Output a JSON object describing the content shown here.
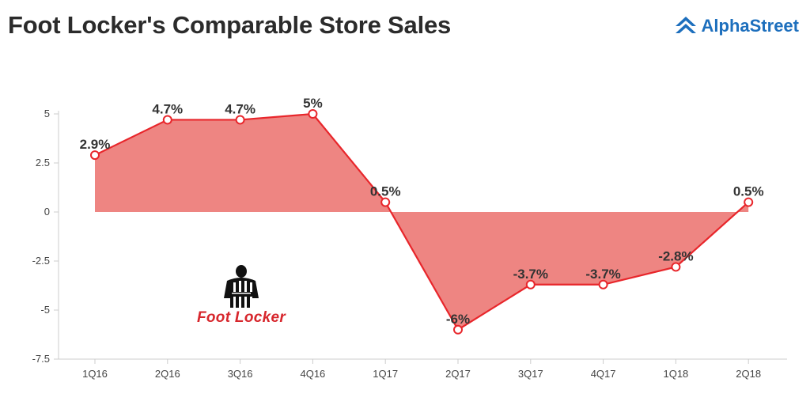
{
  "header": {
    "title": "Foot Locker's Comparable Store Sales",
    "brand": "AlphaStreet",
    "brand_icon": "alphastreet-logo-icon"
  },
  "logo": {
    "text": "Foot Locker",
    "icon": "referee-logo-icon",
    "color": "#d7262c"
  },
  "colors": {
    "line": "#e8262b",
    "fill": "#ee8582",
    "axis": "#cccccc"
  },
  "chart_data": {
    "type": "area",
    "categories": [
      "1Q16",
      "2Q16",
      "3Q16",
      "4Q16",
      "1Q17",
      "2Q17",
      "3Q17",
      "4Q17",
      "1Q18",
      "2Q18"
    ],
    "values": [
      2.9,
      4.7,
      4.7,
      5,
      0.5,
      -6,
      -3.7,
      -3.7,
      -2.8,
      0.5
    ],
    "data_labels": [
      "2.9%",
      "4.7%",
      "4.7%",
      "5%",
      "0.5%",
      "-6%",
      "-3.7%",
      "-3.7%",
      "-2.8%",
      "0.5%"
    ],
    "yticks": [
      "5",
      "2.5",
      "0",
      "-2.5",
      "-5",
      "-7.5"
    ],
    "ylim": [
      -7.5,
      5
    ],
    "grid": false,
    "title": "Foot Locker's Comparable Store Sales",
    "xlabel": "",
    "ylabel": ""
  }
}
